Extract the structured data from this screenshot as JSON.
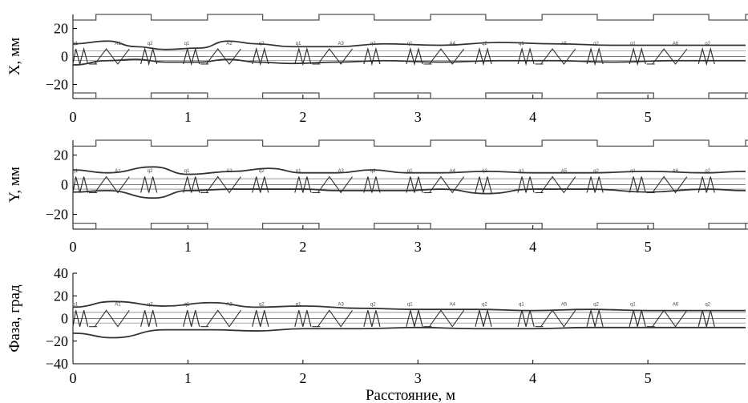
{
  "colors": {
    "ink": "#333333",
    "thin": "#555555",
    "axis": "#000000"
  },
  "xaxis_label": "Расстояние, м",
  "chart_data": [
    {
      "type": "line",
      "ylabel": "X, мм",
      "xlim": [
        0,
        5.85
      ],
      "ylim": [
        -30,
        30
      ],
      "xticks": [
        0,
        1,
        2,
        3,
        4,
        5
      ],
      "yticks": [
        -20,
        0,
        20
      ],
      "aperture": {
        "half_width_narrow": 26,
        "half_width_wide": 30
      },
      "element_labels": [
        "q1",
        "A1",
        "q2",
        "q1",
        "A2",
        "q2",
        "q1",
        "A3",
        "q2",
        "q1",
        "A4",
        "q2",
        "q1",
        "A5",
        "q2",
        "q1",
        "A6",
        "q2"
      ],
      "envelope": {
        "x": [
          0,
          0.3,
          0.55,
          0.8,
          1.1,
          1.35,
          1.6,
          1.9,
          2.3,
          2.7,
          3.2,
          3.7,
          4.2,
          4.7,
          5.2,
          5.85
        ],
        "upper": [
          9,
          11,
          7,
          5,
          6,
          11,
          9,
          7,
          7,
          9,
          8,
          10,
          9,
          8,
          8,
          8
        ],
        "lower": [
          -6,
          -3,
          -2,
          -4,
          -4,
          -2,
          -4,
          -5,
          -4,
          -3,
          -4,
          -3,
          -3,
          -4,
          -3,
          -3
        ]
      }
    },
    {
      "type": "line",
      "ylabel": "Y, мм",
      "xlim": [
        0,
        5.85
      ],
      "ylim": [
        -30,
        30
      ],
      "xticks": [
        0,
        1,
        2,
        3,
        4,
        5
      ],
      "yticks": [
        -20,
        0,
        20
      ],
      "aperture": {
        "half_width_narrow": 26,
        "half_width_wide": 30
      },
      "element_labels": [
        "q1",
        "A1",
        "q2",
        "q1",
        "A2",
        "q2",
        "q1",
        "A3",
        "q2",
        "q1",
        "A4",
        "q2",
        "q1",
        "A5",
        "q2",
        "q1",
        "A6",
        "q2"
      ],
      "envelope": {
        "x": [
          0,
          0.3,
          0.7,
          1.0,
          1.4,
          1.7,
          2.0,
          2.3,
          2.6,
          2.9,
          3.2,
          3.6,
          4.0,
          4.5,
          5.0,
          5.5,
          5.85
        ],
        "upper": [
          10,
          8,
          12,
          7,
          9,
          11,
          8,
          8,
          10,
          8,
          8,
          9,
          8,
          8,
          9,
          8,
          9
        ],
        "lower": [
          -5,
          -4,
          -9,
          -4,
          -3,
          -3,
          -3,
          -4,
          -4,
          -4,
          -3,
          -6,
          -3,
          -3,
          -5,
          -3,
          -4
        ]
      }
    },
    {
      "type": "line",
      "ylabel": "Фаза, град",
      "xlim": [
        0,
        5.85
      ],
      "ylim": [
        -40,
        40
      ],
      "xticks": [
        0,
        1,
        2,
        3,
        4,
        5
      ],
      "yticks": [
        -40,
        -20,
        0,
        20,
        40
      ],
      "element_labels": [
        "q1",
        "A1",
        "q2",
        "q1",
        "A2",
        "q2",
        "q1",
        "A3",
        "q2",
        "q1",
        "A4",
        "q2",
        "q1",
        "A5",
        "q2",
        "q1",
        "A6",
        "q2"
      ],
      "envelope": {
        "x": [
          0,
          0.35,
          0.8,
          1.2,
          1.6,
          2.0,
          2.5,
          3.0,
          3.5,
          4.0,
          4.5,
          5.0,
          5.5,
          5.85
        ],
        "upper": [
          10,
          15,
          11,
          14,
          10,
          11,
          9,
          8,
          8,
          7,
          8,
          7,
          7,
          7
        ],
        "lower": [
          -13,
          -17,
          -10,
          -10,
          -11,
          -9,
          -9,
          -8,
          -9,
          -9,
          -8,
          -8,
          -8,
          -8
        ]
      }
    }
  ]
}
